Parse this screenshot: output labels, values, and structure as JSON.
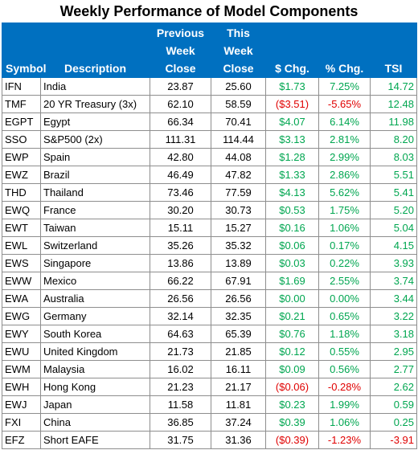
{
  "title": "Weekly Performance of Model Components",
  "colors": {
    "header_bg": "#0070c0",
    "positive": "#00a650",
    "negative": "#e00000"
  },
  "headers": {
    "symbol": "Symbol",
    "description": "Description",
    "prev": [
      "Previous",
      "Week",
      "Close"
    ],
    "this": [
      "This",
      "Week",
      "Close"
    ],
    "chg": "$ Chg.",
    "pct": "% Chg.",
    "tsi": "TSI"
  },
  "rows": [
    {
      "symbol": "IFN",
      "description": "India",
      "prev": "23.87",
      "this": "25.60",
      "chg": "$1.73",
      "pct": "7.25%",
      "tsi": "14.72",
      "dir": "pos"
    },
    {
      "symbol": "TMF",
      "description": "20 YR Treasury (3x)",
      "prev": "62.10",
      "this": "58.59",
      "chg": "($3.51)",
      "pct": "-5.65%",
      "tsi": "12.48",
      "dir": "neg"
    },
    {
      "symbol": "EGPT",
      "description": "Egypt",
      "prev": "66.34",
      "this": "70.41",
      "chg": "$4.07",
      "pct": "6.14%",
      "tsi": "11.98",
      "dir": "pos"
    },
    {
      "symbol": "SSO",
      "description": "S&P500 (2x)",
      "prev": "111.31",
      "this": "114.44",
      "chg": "$3.13",
      "pct": "2.81%",
      "tsi": "8.20",
      "dir": "pos"
    },
    {
      "symbol": "EWP",
      "description": "Spain",
      "prev": "42.80",
      "this": "44.08",
      "chg": "$1.28",
      "pct": "2.99%",
      "tsi": "8.03",
      "dir": "pos"
    },
    {
      "symbol": "EWZ",
      "description": "Brazil",
      "prev": "46.49",
      "this": "47.82",
      "chg": "$1.33",
      "pct": "2.86%",
      "tsi": "5.51",
      "dir": "pos"
    },
    {
      "symbol": "THD",
      "description": "Thailand",
      "prev": "73.46",
      "this": "77.59",
      "chg": "$4.13",
      "pct": "5.62%",
      "tsi": "5.41",
      "dir": "pos"
    },
    {
      "symbol": "EWQ",
      "description": "France",
      "prev": "30.20",
      "this": "30.73",
      "chg": "$0.53",
      "pct": "1.75%",
      "tsi": "5.20",
      "dir": "pos"
    },
    {
      "symbol": "EWT",
      "description": "Taiwan",
      "prev": "15.11",
      "this": "15.27",
      "chg": "$0.16",
      "pct": "1.06%",
      "tsi": "5.04",
      "dir": "pos"
    },
    {
      "symbol": "EWL",
      "description": "Switzerland",
      "prev": "35.26",
      "this": "35.32",
      "chg": "$0.06",
      "pct": "0.17%",
      "tsi": "4.15",
      "dir": "pos"
    },
    {
      "symbol": "EWS",
      "description": "Singapore",
      "prev": "13.86",
      "this": "13.89",
      "chg": "$0.03",
      "pct": "0.22%",
      "tsi": "3.93",
      "dir": "pos"
    },
    {
      "symbol": "EWW",
      "description": "Mexico",
      "prev": "66.22",
      "this": "67.91",
      "chg": "$1.69",
      "pct": "2.55%",
      "tsi": "3.74",
      "dir": "pos"
    },
    {
      "symbol": "EWA",
      "description": "Australia",
      "prev": "26.56",
      "this": "26.56",
      "chg": "$0.00",
      "pct": "0.00%",
      "tsi": "3.44",
      "dir": "pos"
    },
    {
      "symbol": "EWG",
      "description": "Germany",
      "prev": "32.14",
      "this": "32.35",
      "chg": "$0.21",
      "pct": "0.65%",
      "tsi": "3.22",
      "dir": "pos"
    },
    {
      "symbol": "EWY",
      "description": "South Korea",
      "prev": "64.63",
      "this": "65.39",
      "chg": "$0.76",
      "pct": "1.18%",
      "tsi": "3.18",
      "dir": "pos"
    },
    {
      "symbol": "EWU",
      "description": "United Kingdom",
      "prev": "21.73",
      "this": "21.85",
      "chg": "$0.12",
      "pct": "0.55%",
      "tsi": "2.95",
      "dir": "pos"
    },
    {
      "symbol": "EWM",
      "description": "Malaysia",
      "prev": "16.02",
      "this": "16.11",
      "chg": "$0.09",
      "pct": "0.56%",
      "tsi": "2.77",
      "dir": "pos"
    },
    {
      "symbol": "EWH",
      "description": "Hong Kong",
      "prev": "21.23",
      "this": "21.17",
      "chg": "($0.06)",
      "pct": "-0.28%",
      "tsi": "2.62",
      "dir": "neg"
    },
    {
      "symbol": "EWJ",
      "description": "Japan",
      "prev": "11.58",
      "this": "11.81",
      "chg": "$0.23",
      "pct": "1.99%",
      "tsi": "0.59",
      "dir": "pos"
    },
    {
      "symbol": "FXI",
      "description": "China",
      "prev": "36.85",
      "this": "37.24",
      "chg": "$0.39",
      "pct": "1.06%",
      "tsi": "0.25",
      "dir": "pos"
    },
    {
      "symbol": "EFZ",
      "description": "Short EAFE",
      "prev": "31.75",
      "this": "31.36",
      "chg": "($0.39)",
      "pct": "-1.23%",
      "tsi": "-3.91",
      "dir": "neg"
    }
  ]
}
